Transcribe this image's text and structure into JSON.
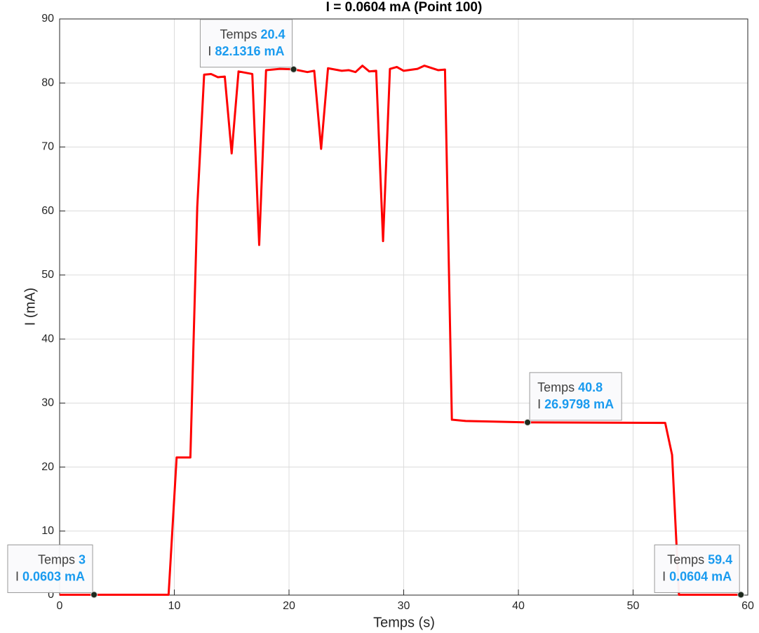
{
  "chart_data": {
    "type": "line",
    "title": "I = 0.0604 mA (Point 100)",
    "x_label": "Temps (s)",
    "y_label": "I (mA)",
    "xlim": [
      0,
      60
    ],
    "xticks": [
      0,
      10,
      20,
      30,
      40,
      50,
      60
    ],
    "ylim": [
      0,
      90
    ],
    "yticks": [
      0,
      10,
      20,
      30,
      40,
      50,
      60,
      70,
      80,
      90
    ],
    "grid": true,
    "series": [
      {
        "name": "I",
        "color": "#ff0000",
        "x": [
          0,
          3,
          9.5,
          10.2,
          11.4,
          12.0,
          12.6,
          13.2,
          13.8,
          14.4,
          15.0,
          15.6,
          16.8,
          17.4,
          18.0,
          19.2,
          20.4,
          21.6,
          22.2,
          22.8,
          23.4,
          24.6,
          25.2,
          25.8,
          26.4,
          27.0,
          27.6,
          28.2,
          28.8,
          29.4,
          30.0,
          31.2,
          31.8,
          33.0,
          33.6,
          34.2,
          35.4,
          37.8,
          40.8,
          52.8,
          53.4,
          54.0,
          59.4
        ],
        "values": [
          0.06,
          0.0603,
          0.06,
          21.5,
          21.5,
          60.6,
          81.3,
          81.4,
          80.9,
          81.0,
          69.0,
          81.8,
          81.4,
          54.7,
          82.0,
          82.2,
          82.1316,
          81.7,
          81.9,
          69.7,
          82.3,
          81.9,
          82.0,
          81.7,
          82.7,
          81.8,
          81.9,
          55.3,
          82.2,
          82.5,
          81.9,
          82.2,
          82.7,
          82.0,
          82.1,
          27.4,
          27.2,
          27.1,
          26.9798,
          26.9,
          21.9,
          0.06,
          0.0604
        ]
      }
    ],
    "datatips": {
      "x_name": "Temps",
      "y_name": "I",
      "points": [
        {
          "x": 3,
          "y": 0.0603,
          "y_text": "0.0603 mA"
        },
        {
          "x": 20.4,
          "y": 82.1316,
          "y_text": "82.1316 mA"
        },
        {
          "x": 40.8,
          "y": 26.9798,
          "y_text": "26.9798 mA"
        },
        {
          "x": 59.4,
          "y": 0.0604,
          "y_text": "0.0604 mA"
        }
      ]
    }
  }
}
